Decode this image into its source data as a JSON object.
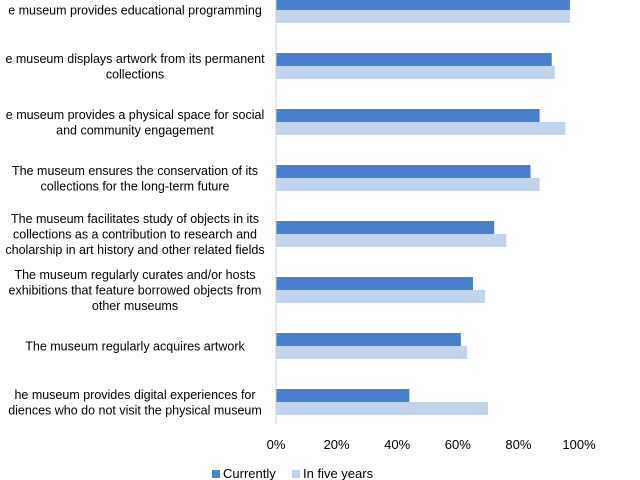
{
  "chart_data": {
    "type": "bar",
    "orientation": "horizontal",
    "categories": [
      "The museum provides educational programming",
      "The museum displays artwork from its permanent collections",
      "The museum provides a physical space for social and community engagement",
      "The museum ensures the conservation of its collections for the long-term future",
      "The museum facilitates study of objects in its collections as a contribution to research and scholarship in art history and other related fields",
      "The museum regularly curates and/or hosts exhibitions that feature borrowed objects from other museums",
      "The museum regularly acquires artwork",
      "The museum provides digital experiences for audiences who do not visit the physical museum"
    ],
    "category_lines": [
      [
        "e museum provides educational programming"
      ],
      [
        "e museum displays artwork from its permanent",
        "collections"
      ],
      [
        "e museum provides a physical space for social",
        "and community engagement"
      ],
      [
        "The museum ensures the conservation of  its",
        "collections for the long-term future"
      ],
      [
        "The museum facilitates study of objects in its",
        "collections as a contribution to research and",
        "cholarship in art history and other related fields"
      ],
      [
        "The museum regularly curates and/or hosts",
        "exhibitions that feature borrowed objects from",
        "other museums"
      ],
      [
        "The museum regularly acquires artwork"
      ],
      [
        "he museum provides digital experiences for",
        "diences who do not visit the physical museum"
      ]
    ],
    "series": [
      {
        "name": "Currently",
        "color": "#4a7ecf",
        "values": [
          0.97,
          0.91,
          0.87,
          0.84,
          0.72,
          0.65,
          0.61,
          0.44
        ]
      },
      {
        "name": "In five years",
        "color": "#c3d4ed",
        "values": [
          0.97,
          0.92,
          0.955,
          0.87,
          0.76,
          0.69,
          0.63,
          0.7
        ]
      }
    ],
    "xlim": [
      0,
      1
    ],
    "xticks": [
      "0%",
      "20%",
      "40%",
      "60%",
      "80%",
      "100%"
    ],
    "gridlines": false,
    "legend_position": "bottom",
    "title": "",
    "xlabel": "",
    "ylabel": ""
  }
}
